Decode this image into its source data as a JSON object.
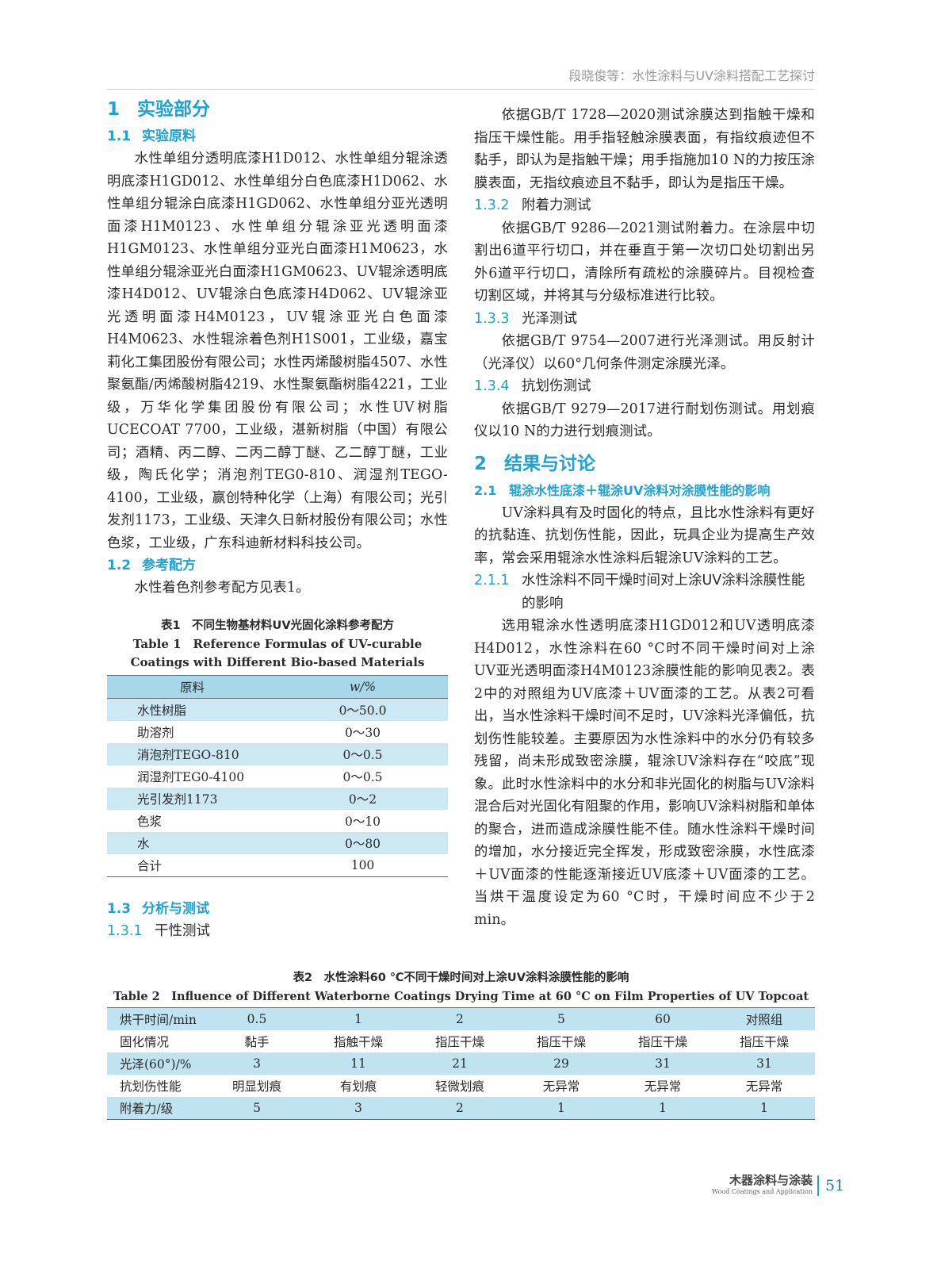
{
  "running_header": "段晓俊等：水性涂料与UV涂料搭配工艺探讨",
  "left": {
    "sec1": {
      "num": "1",
      "title": "实验部分"
    },
    "sec1_1": {
      "num": "1.1",
      "title": "实验原料"
    },
    "materials": "水性单组分透明底漆H1D012、水性单组分辊涂透明底漆H1GD012、水性单组分白色底漆H1D062、水性单组分辊涂白底漆H1GD062、水性单组分亚光透明面漆H1M0123、水性单组分辊涂亚光透明面漆H1GM0123、水性单组分亚光白面漆H1M0623，水性单组分辊涂亚光白面漆H1GM0623、UV辊涂透明底漆H4D012、UV辊涂白色底漆H4D062、UV辊涂亚光透明面漆H4M0123，UV辊涂亚光白色面漆H4M0623、水性辊涂着色剂H1S001，工业级，嘉宝莉化工集团股份有限公司；水性丙烯酸树脂4507、水性聚氨酯/丙烯酸树脂4219、水性聚氨酯树脂4221，工业级，万华化学集团股份有限公司；水性UV树脂UCECOAT 7700，工业级，湛新树脂（中国）有限公司；酒精、丙二醇、二丙二醇丁醚、乙二醇丁醚，工业级，陶氏化学；消泡剂TEG0-810、润湿剂TEGO-4100，工业级，赢创特种化学（上海）有限公司；光引发剂1173，工业级、天津久日新材股份有限公司；水性色浆，工业级，广东科迪新材料科技公司。",
    "sec1_2": {
      "num": "1.2",
      "title": "参考配方"
    },
    "formula_text": "水性着色剂参考配方见表1。",
    "table1": {
      "caption_cn": "表1　不同生物基材料UV光固化涂料参考配方",
      "caption_en": "Table 1　Reference Formulas of UV-curable Coatings with Different Bio-based Materials",
      "headers": [
        "原料",
        "w/%"
      ],
      "rows": [
        [
          "水性树脂",
          "0～50.0"
        ],
        [
          "助溶剂",
          "0～30"
        ],
        [
          "消泡剂TEGO-810",
          "0～0.5"
        ],
        [
          "润湿剂TEG0-4100",
          "0～0.5"
        ],
        [
          "光引发剂1173",
          "0～2"
        ],
        [
          "色浆",
          "0～10"
        ],
        [
          "水",
          "0～80"
        ],
        [
          "合计",
          "100"
        ]
      ]
    },
    "sec1_3": {
      "num": "1.3",
      "title": "分析与测试"
    },
    "sec1_3_1": {
      "num": "1.3.1",
      "title": "干性测试"
    }
  },
  "right": {
    "dry_text": "依据GB/T 1728—2020测试涂膜达到指触干燥和指压干燥性能。用手指轻触涂膜表面，有指纹痕迹但不黏手，即认为是指触干燥；用手指施加10 N的力按压涂膜表面，无指纹痕迹且不黏手，即认为是指压干燥。",
    "sec1_3_2": {
      "num": "1.3.2",
      "title": "附着力测试"
    },
    "adhesion_text": "依据GB/T 9286—2021测试附着力。在涂层中切割出6道平行切口，并在垂直于第一次切口处切割出另外6道平行切口，清除所有疏松的涂膜碎片。目视检查切割区域，并将其与分级标准进行比较。",
    "sec1_3_3": {
      "num": "1.3.3",
      "title": "光泽测试"
    },
    "gloss_text": "依据GB/T 9754—2007进行光泽测试。用反射计（光泽仪）以60°几何条件测定涂膜光泽。",
    "sec1_3_4": {
      "num": "1.3.4",
      "title": "抗划伤测试"
    },
    "scratch_text": "依据GB/T 9279—2017进行耐划伤测试。用划痕仪以10 N的力进行划痕测试。",
    "sec2": {
      "num": "2",
      "title": "结果与讨论"
    },
    "sec2_1": {
      "num": "2.1",
      "title": "辊涂水性底漆＋辊涂UV涂料对涂膜性能的影响"
    },
    "uv_text": "UV涂料具有及时固化的特点，且比水性涂料有更好的抗黏连、抗划伤性能，因此，玩具企业为提高生产效率，常会采用辊涂水性涂料后辊涂UV涂料的工艺。",
    "sec2_1_1": {
      "num": "2.1.1",
      "title": "水性涂料不同干燥时间对上涂UV涂料涂膜性能的影响"
    },
    "result_text": "选用辊涂水性透明底漆H1GD012和UV透明底漆H4D012，水性涂料在60 °C时不同干燥时间对上涂UV亚光透明面漆H4M0123涂膜性能的影响见表2。表2中的对照组为UV底漆＋UV面漆的工艺。从表2可看出，当水性涂料干燥时间不足时，UV涂料光泽偏低，抗划伤性能较差。主要原因为水性涂料中的水分仍有较多残留，尚未形成致密涂膜，辊涂UV涂料存在“咬底”现象。此时水性涂料中的水分和非光固化的树脂与UV涂料混合后对光固化有阻聚的作用，影响UV涂料树脂和单体的聚合，进而造成涂膜性能不佳。随水性涂料干燥时间的增加，水分接近完全挥发，形成致密涂膜，水性底漆＋UV面漆的性能逐渐接近UV底漆＋UV面漆的工艺。当烘干温度设定为60 °C时，干燥时间应不少于2 min。"
  },
  "table2": {
    "caption_cn": "表2　水性涂料60 ℃不同干燥时间对上涂UV涂料涂膜性能的影响",
    "caption_en": "Table 2　Influence of Different Waterborne Coatings Drying Time at 60 °C on Film Properties of UV Topcoat",
    "rows": [
      [
        "烘干时间/min",
        "0.5",
        "1",
        "2",
        "5",
        "60",
        "对照组"
      ],
      [
        "固化情况",
        "黏手",
        "指触干燥",
        "指压干燥",
        "指压干燥",
        "指压干燥",
        "指压干燥"
      ],
      [
        "光泽(60°)/%",
        "3",
        "11",
        "21",
        "29",
        "31",
        "31"
      ],
      [
        "抗划伤性能",
        "明显划痕",
        "有划痕",
        "轻微划痕",
        "无异常",
        "无异常",
        "无异常"
      ],
      [
        "附着力/级",
        "5",
        "3",
        "2",
        "1",
        "1",
        "1"
      ]
    ]
  },
  "footer": {
    "journal_cn": "木器涂料与涂装",
    "journal_en": "Wood Coatings and Application",
    "page_number": "51"
  },
  "colors": {
    "heading": "#1ea2d6",
    "table_header": "#a6d8ea",
    "table_stripe": "#cbe8f3"
  }
}
